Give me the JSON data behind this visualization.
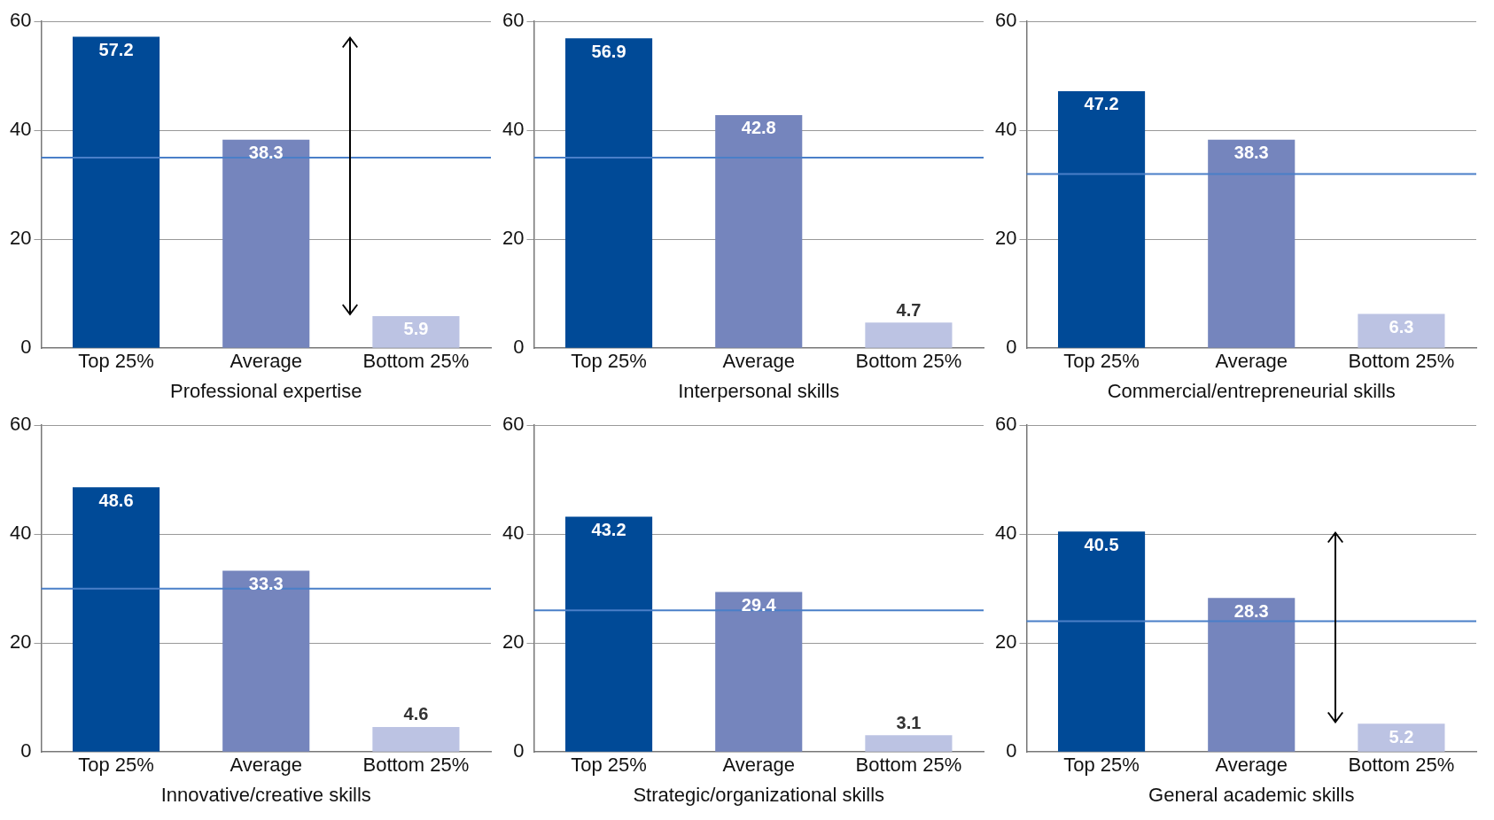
{
  "chart_data": [
    {
      "type": "bar",
      "xlabel": "Professional expertise",
      "categories": [
        "Top 25%",
        "Average",
        "Bottom 25%"
      ],
      "values": [
        57.2,
        38.3,
        5.9
      ],
      "colors": [
        "#004a97",
        "#7585bd",
        "#bcc3e3"
      ],
      "ylim": [
        0,
        60
      ],
      "yticks": [
        0,
        20,
        40,
        60
      ],
      "grid": "y",
      "data_labels": true,
      "ref_lines": [
        {
          "axis": "y",
          "value": 35,
          "color": "#4a7fc8"
        }
      ]
    },
    {
      "type": "bar",
      "xlabel": "Interpersonal skills",
      "categories": [
        "Top 25%",
        "Average",
        "Bottom 25%"
      ],
      "values": [
        56.9,
        42.8,
        4.7
      ],
      "colors": [
        "#004a97",
        "#7585bd",
        "#bcc3e3"
      ],
      "ylim": [
        0,
        60
      ],
      "yticks": [
        0,
        20,
        40,
        60
      ],
      "grid": "y",
      "data_labels": true,
      "ref_lines": [
        {
          "axis": "y",
          "value": 35,
          "color": "#4a7fc8"
        }
      ]
    },
    {
      "type": "bar",
      "xlabel": "Commercial/entrepreneurial skills",
      "categories": [
        "Top 25%",
        "Average",
        "Bottom 25%"
      ],
      "values": [
        47.2,
        38.3,
        6.3
      ],
      "colors": [
        "#004a97",
        "#7585bd",
        "#bcc3e3"
      ],
      "ylim": [
        0,
        60
      ],
      "yticks": [
        0,
        20,
        40,
        60
      ],
      "grid": "y",
      "data_labels": true,
      "ref_lines": [
        {
          "axis": "y",
          "value": 32,
          "color": "#4a7fc8"
        }
      ]
    },
    {
      "type": "bar",
      "xlabel": "Innovative/creative skills",
      "categories": [
        "Top 25%",
        "Average",
        "Bottom 25%"
      ],
      "values": [
        48.6,
        33.3,
        4.6
      ],
      "colors": [
        "#004a97",
        "#7585bd",
        "#bcc3e3"
      ],
      "ylim": [
        0,
        60
      ],
      "yticks": [
        0,
        20,
        40,
        60
      ],
      "grid": "y",
      "data_labels": true,
      "ref_lines": [
        {
          "axis": "y",
          "value": 30,
          "color": "#4a7fc8"
        }
      ]
    },
    {
      "type": "bar",
      "xlabel": "Strategic/organizational skills",
      "categories": [
        "Top 25%",
        "Average",
        "Bottom 25%"
      ],
      "values": [
        43.2,
        29.4,
        3.1
      ],
      "colors": [
        "#004a97",
        "#7585bd",
        "#bcc3e3"
      ],
      "ylim": [
        0,
        60
      ],
      "yticks": [
        0,
        20,
        40,
        60
      ],
      "grid": "y",
      "data_labels": true,
      "ref_lines": [
        {
          "axis": "y",
          "value": 26,
          "color": "#4a7fc8"
        }
      ]
    },
    {
      "type": "bar",
      "xlabel": "General academic skills",
      "categories": [
        "Top 25%",
        "Average",
        "Bottom 25%"
      ],
      "values": [
        40.5,
        28.3,
        5.2
      ],
      "colors": [
        "#004a97",
        "#7585bd",
        "#bcc3e3"
      ],
      "ylim": [
        0,
        60
      ],
      "yticks": [
        0,
        20,
        40,
        60
      ],
      "grid": "y",
      "data_labels": true,
      "ref_lines": [
        {
          "axis": "y",
          "value": 24,
          "color": "#4a7fc8"
        }
      ]
    }
  ]
}
